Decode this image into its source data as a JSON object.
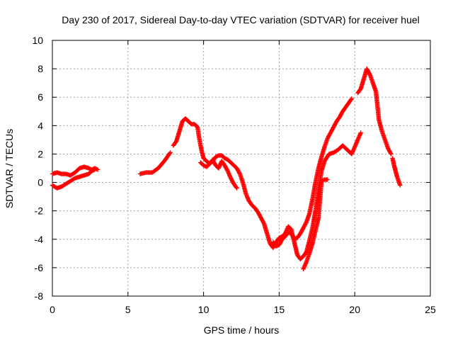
{
  "chart_data": {
    "type": "scatter",
    "title": "Day 230 of 2017, Sidereal Day-to-day VTEC variation (SDTVAR) for receiver huel",
    "xlabel": "GPS time / hours",
    "ylabel": "SDTVAR / TECUs",
    "xlim": [
      0,
      25
    ],
    "ylim": [
      -8,
      10
    ],
    "xticks": [
      "0",
      "5",
      "10",
      "15",
      "20",
      "25"
    ],
    "yticks": [
      "-8",
      "-6",
      "-4",
      "-2",
      "0",
      "2",
      "4",
      "6",
      "8",
      "10"
    ],
    "grid": true,
    "marker": "plus",
    "color": "#ff0000",
    "series": [
      {
        "points": [
          [
            0,
            0.6
          ],
          [
            0.3,
            0.7
          ],
          [
            0.6,
            0.6
          ],
          [
            0.9,
            0.6
          ],
          [
            1.2,
            0.5
          ],
          [
            1.5,
            0.7
          ],
          [
            1.8,
            1.0
          ],
          [
            2.1,
            1.1
          ],
          [
            2.4,
            1.0
          ],
          [
            2.6,
            0.9
          ],
          [
            2.8,
            1.0
          ],
          [
            3.0,
            0.9
          ]
        ]
      },
      {
        "points": [
          [
            0,
            -0.2
          ],
          [
            0.3,
            -0.4
          ],
          [
            0.6,
            -0.3
          ],
          [
            0.9,
            -0.1
          ],
          [
            1.2,
            0.1
          ],
          [
            1.5,
            0.3
          ],
          [
            1.8,
            0.4
          ],
          [
            2.1,
            0.5
          ],
          [
            2.4,
            0.6
          ],
          [
            2.6,
            0.8
          ],
          [
            2.8,
            0.9
          ]
        ]
      },
      {
        "points": [
          [
            5.8,
            0.6
          ],
          [
            6.2,
            0.7
          ],
          [
            6.6,
            0.7
          ],
          [
            7.0,
            1.0
          ],
          [
            7.4,
            1.5
          ],
          [
            7.8,
            2.1
          ]
        ]
      },
      {
        "points": [
          [
            8.0,
            2.6
          ],
          [
            8.2,
            2.9
          ],
          [
            8.4,
            3.6
          ],
          [
            8.6,
            4.3
          ],
          [
            8.8,
            4.5
          ],
          [
            9.0,
            4.3
          ],
          [
            9.2,
            4.1
          ],
          [
            9.4,
            4.1
          ],
          [
            9.6,
            3.9
          ],
          [
            9.7,
            3.2
          ],
          [
            9.8,
            2.6
          ],
          [
            9.9,
            2.1
          ],
          [
            10.0,
            1.7
          ],
          [
            10.2,
            1.5
          ],
          [
            10.4,
            1.3
          ],
          [
            10.6,
            1.5
          ],
          [
            10.8,
            1.8
          ],
          [
            11.0,
            1.9
          ],
          [
            11.2,
            1.9
          ],
          [
            11.4,
            1.7
          ],
          [
            11.6,
            1.6
          ],
          [
            11.8,
            1.4
          ],
          [
            12.0,
            1.2
          ],
          [
            12.2,
            1.0
          ],
          [
            12.4,
            0.6
          ],
          [
            12.6,
            0.0
          ],
          [
            12.8,
            -0.8
          ],
          [
            13.0,
            -1.3
          ],
          [
            13.2,
            -1.6
          ],
          [
            13.4,
            -1.8
          ],
          [
            13.6,
            -2.1
          ],
          [
            13.8,
            -2.5
          ],
          [
            14.0,
            -2.9
          ],
          [
            14.2,
            -3.6
          ],
          [
            14.4,
            -4.3
          ],
          [
            14.6,
            -4.6
          ],
          [
            14.8,
            -4.2
          ],
          [
            15.0,
            -3.9
          ],
          [
            15.2,
            -3.8
          ],
          [
            15.4,
            -3.6
          ],
          [
            15.6,
            -3.1
          ],
          [
            15.8,
            -3.3
          ],
          [
            16.0,
            -4.2
          ],
          [
            16.2,
            -5.1
          ],
          [
            16.4,
            -5.4
          ],
          [
            16.6,
            -5.2
          ],
          [
            16.8,
            -4.9
          ],
          [
            17.0,
            -4.1
          ],
          [
            17.2,
            -3.2
          ],
          [
            17.4,
            -2.0
          ],
          [
            17.6,
            -0.5
          ],
          [
            17.8,
            0.8
          ],
          [
            18.0,
            1.5
          ],
          [
            18.3,
            2.0
          ],
          [
            18.6,
            2.1
          ],
          [
            18.9,
            2.3
          ],
          [
            19.2,
            2.6
          ],
          [
            19.5,
            2.3
          ],
          [
            19.8,
            2.0
          ],
          [
            20.0,
            2.5
          ],
          [
            20.2,
            3.0
          ],
          [
            20.4,
            3.5
          ]
        ]
      },
      {
        "points": [
          [
            9.8,
            1.4
          ],
          [
            10.0,
            1.2
          ],
          [
            10.2,
            1.1
          ],
          [
            10.4,
            1.3
          ],
          [
            10.6,
            1.6
          ],
          [
            10.8,
            1.2
          ],
          [
            11.0,
            1.0
          ],
          [
            11.2,
            1.5
          ],
          [
            11.4,
            1.2
          ],
          [
            11.6,
            0.8
          ],
          [
            11.8,
            0.3
          ],
          [
            12.0,
            -0.1
          ],
          [
            12.2,
            -0.4
          ]
        ]
      },
      {
        "points": [
          [
            14.6,
            -4.2
          ],
          [
            14.8,
            -4.5
          ],
          [
            15.0,
            -4.4
          ],
          [
            15.2,
            -4.0
          ],
          [
            15.4,
            -3.8
          ],
          [
            15.6,
            -3.5
          ],
          [
            15.8,
            -3.6
          ],
          [
            16.0,
            -4.0
          ],
          [
            16.2,
            -3.9
          ],
          [
            16.4,
            -3.6
          ],
          [
            16.6,
            -3.2
          ],
          [
            16.8,
            -2.8
          ],
          [
            17.0,
            -2.2
          ],
          [
            17.2,
            -1.2
          ],
          [
            17.4,
            0.0
          ],
          [
            17.6,
            1.0
          ],
          [
            17.8,
            1.8
          ],
          [
            18.0,
            2.5
          ],
          [
            18.2,
            3.1
          ],
          [
            18.4,
            3.5
          ],
          [
            18.6,
            3.9
          ],
          [
            18.8,
            4.3
          ],
          [
            19.0,
            4.6
          ],
          [
            19.2,
            5.0
          ],
          [
            19.4,
            5.3
          ],
          [
            19.6,
            5.6
          ],
          [
            19.8,
            5.9
          ]
        ]
      },
      {
        "points": [
          [
            16.6,
            -6.1
          ],
          [
            16.8,
            -5.6
          ],
          [
            17.0,
            -5.0
          ],
          [
            17.2,
            -4.3
          ],
          [
            17.4,
            -3.4
          ],
          [
            17.6,
            -2.5
          ],
          [
            17.8,
            0.1
          ],
          [
            18.0,
            0.2
          ],
          [
            18.2,
            0.2
          ]
        ]
      },
      {
        "points": [
          [
            20.2,
            6.3
          ],
          [
            20.4,
            6.6
          ],
          [
            20.6,
            7.3
          ],
          [
            20.8,
            8.0
          ],
          [
            21.0,
            7.6
          ],
          [
            21.2,
            7.0
          ],
          [
            21.4,
            6.4
          ],
          [
            21.5,
            5.4
          ],
          [
            21.6,
            4.4
          ],
          [
            21.8,
            3.6
          ],
          [
            22.0,
            3.0
          ],
          [
            22.2,
            2.4
          ],
          [
            22.4,
            2.0
          ]
        ]
      },
      {
        "points": [
          [
            22.5,
            1.7
          ],
          [
            22.6,
            1.2
          ],
          [
            22.7,
            0.8
          ],
          [
            22.8,
            0.4
          ],
          [
            22.9,
            0.1
          ],
          [
            23.0,
            -0.2
          ]
        ]
      }
    ]
  }
}
